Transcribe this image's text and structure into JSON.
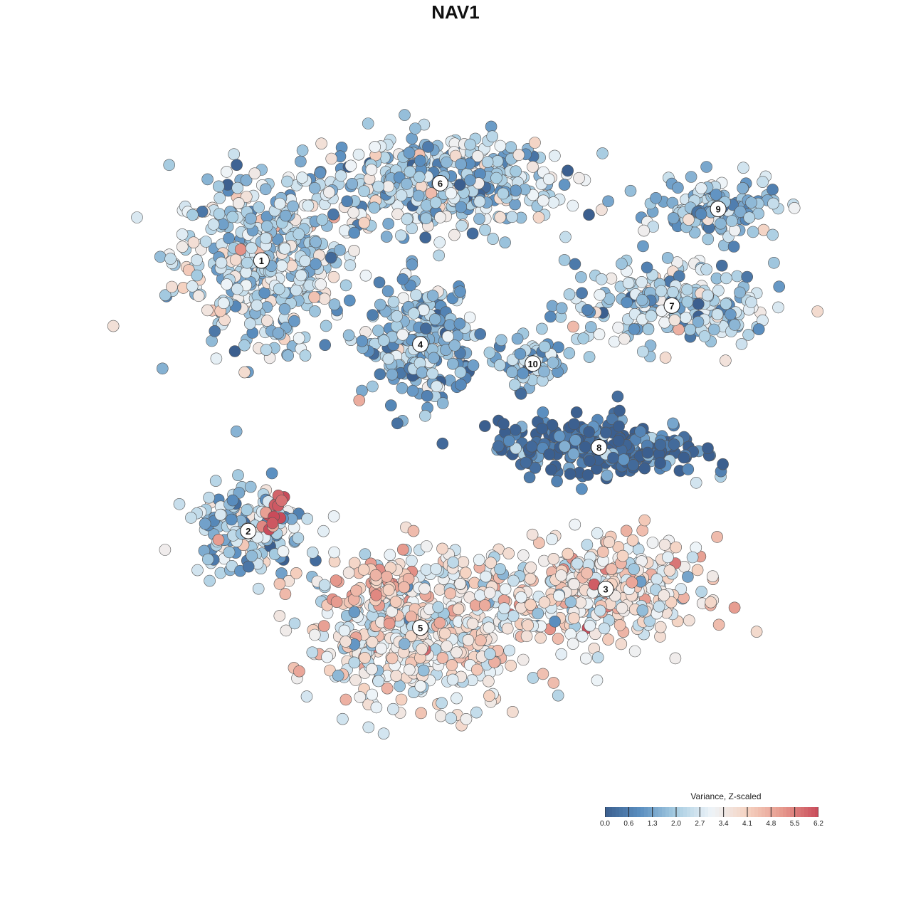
{
  "chart_data": {
    "type": "scatter",
    "title": "NAV1",
    "color_scale": {
      "title": "Variance, Z-scaled",
      "ticks": [
        "0.0",
        "0.6",
        "1.3",
        "2.0",
        "2.7",
        "3.4",
        "4.1",
        "4.8",
        "5.5",
        "6.2"
      ],
      "min": 0.0,
      "max": 6.2,
      "colors": [
        "#3b5f8f",
        "#5b8fc0",
        "#a8cde2",
        "#eef4f8",
        "#f5d2c1",
        "#e6988c",
        "#c94b5a"
      ]
    },
    "clusters": [
      {
        "label": "1",
        "x": 0.18,
        "y": 0.8,
        "spread_x": 0.12,
        "spread_y": 0.12,
        "mean_value": 2.4,
        "count": 430
      },
      {
        "label": "6",
        "x": 0.45,
        "y": 0.92,
        "spread_x": 0.17,
        "spread_y": 0.07,
        "mean_value": 2.1,
        "count": 420
      },
      {
        "label": "9",
        "x": 0.87,
        "y": 0.88,
        "spread_x": 0.08,
        "spread_y": 0.04,
        "mean_value": 1.8,
        "count": 140
      },
      {
        "label": "7",
        "x": 0.8,
        "y": 0.73,
        "spread_x": 0.14,
        "spread_y": 0.06,
        "mean_value": 2.2,
        "count": 230
      },
      {
        "label": "4",
        "x": 0.42,
        "y": 0.67,
        "spread_x": 0.08,
        "spread_y": 0.08,
        "mean_value": 1.6,
        "count": 230
      },
      {
        "label": "10",
        "x": 0.59,
        "y": 0.64,
        "spread_x": 0.04,
        "spread_y": 0.04,
        "mean_value": 1.8,
        "count": 60
      },
      {
        "label": "8",
        "x": 0.69,
        "y": 0.51,
        "spread_x": 0.14,
        "spread_y": 0.04,
        "mean_value": 0.25,
        "count": 260
      },
      {
        "label": "2",
        "x": 0.16,
        "y": 0.38,
        "spread_x": 0.08,
        "spread_y": 0.06,
        "mean_value": 2.1,
        "count": 160
      },
      {
        "label": "3",
        "x": 0.7,
        "y": 0.29,
        "spread_x": 0.13,
        "spread_y": 0.07,
        "mean_value": 3.5,
        "count": 360
      },
      {
        "label": "5",
        "x": 0.42,
        "y": 0.23,
        "spread_x": 0.16,
        "spread_y": 0.11,
        "mean_value": 3.3,
        "count": 520
      }
    ],
    "hotspots": [
      {
        "near": "2",
        "x": 0.2,
        "y": 0.42,
        "value": 6.1,
        "count": 14
      },
      {
        "near": "5",
        "x": 0.36,
        "y": 0.3,
        "value": 4.4,
        "count": 40
      }
    ]
  }
}
